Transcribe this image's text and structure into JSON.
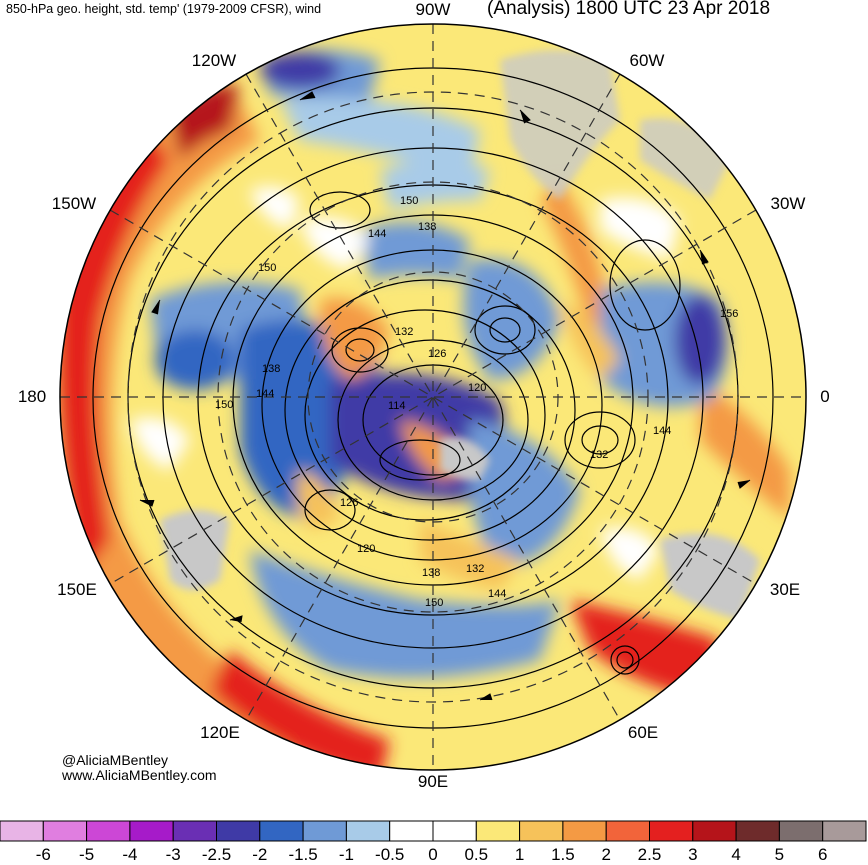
{
  "header": {
    "title_left": "850-hPa geo. height, std. temp' (1979-2009 CFSR), wind",
    "title_right": "(Analysis) 1800 UTC 23 Apr 2018"
  },
  "longitude_labels": {
    "w90": "90W",
    "w60": "60W",
    "w30": "30W",
    "e0": "0",
    "e30": "30E",
    "e60": "60E",
    "e90": "90E",
    "e120": "120E",
    "e150": "150E",
    "d180": "180",
    "w150": "150W",
    "w120": "120W"
  },
  "contour_labels": [
    "150",
    "138",
    "144",
    "150",
    "132",
    "126",
    "138",
    "144",
    "150",
    "114",
    "120",
    "156",
    "144",
    "132",
    "126",
    "120",
    "138",
    "132",
    "144",
    "150"
  ],
  "credits": {
    "handle": "@AliciaMBentley",
    "website": "www.AliciaMBentley.com"
  },
  "colorbar": {
    "labels": [
      "-6",
      "-5",
      "-4",
      "-3",
      "-2.5",
      "-2",
      "-1.5",
      "-1",
      "-0.5",
      "0",
      "0.5",
      "1",
      "1.5",
      "2",
      "2.5",
      "3",
      "4",
      "5",
      "6"
    ],
    "colors": [
      "#e8b4e6",
      "#e07ee0",
      "#cc47d6",
      "#a61bc9",
      "#6a2fb4",
      "#3f3aa6",
      "#3266c2",
      "#6f9ad6",
      "#a8cbe8",
      "#ffffff",
      "#ffffff",
      "#fbe878",
      "#f6c25a",
      "#f49a44",
      "#f2643a",
      "#e4201f",
      "#b5141a",
      "#6e2b2b",
      "#7c6e6e",
      "#a89a9a"
    ]
  },
  "map_colors": {
    "warm_strong": "#e4201f",
    "warm_mid": "#f49a44",
    "warm_light": "#f6c25a",
    "warm_pale": "#fbe878",
    "cool_pale": "#a8cbe8",
    "cool_mid": "#6f9ad6",
    "cool_strong": "#3266c2",
    "cool_deep": "#3f3aa6",
    "land_gray": "#c8c8c8"
  }
}
